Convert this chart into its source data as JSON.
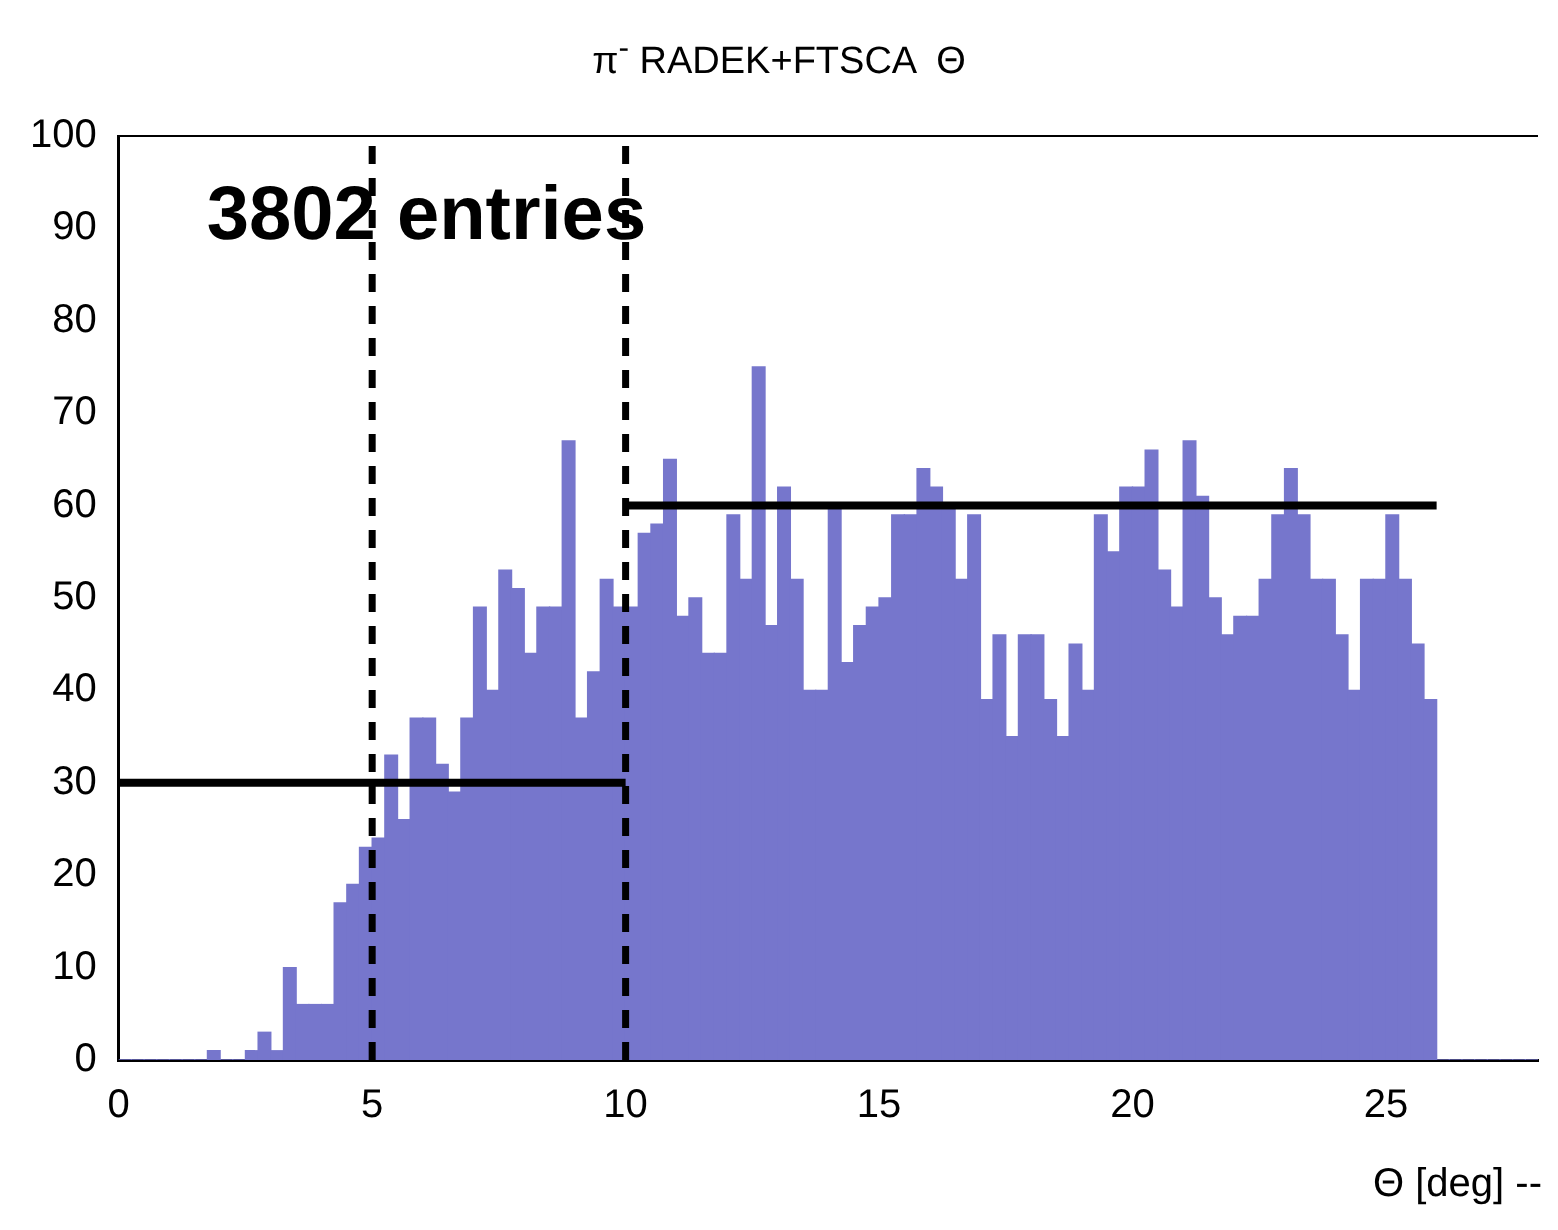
{
  "chart_data": {
    "type": "histogram",
    "title": "π$^{-}$ RADEK+FTSCA  Θ",
    "xlabel": "Θ [deg] --",
    "annotations": [
      "3802 entries"
    ],
    "bins": [
      0,
      0.25,
      0.5,
      0.75,
      1,
      1.25,
      1.5,
      1.75,
      2,
      2.25,
      2.5,
      2.75,
      3,
      3.25,
      3.5,
      3.75,
      4,
      4.25,
      4.5,
      4.75,
      5,
      5.25,
      5.5,
      5.75,
      6,
      6.25,
      6.5,
      6.75,
      7,
      7.25,
      7.5,
      7.75,
      8,
      8.25,
      8.5,
      8.75,
      9,
      9.25,
      9.5,
      9.75,
      10,
      10.25,
      10.5,
      10.75,
      11,
      11.25,
      11.5,
      11.75,
      12,
      12.25,
      12.5,
      12.75,
      13,
      13.25,
      13.5,
      13.75,
      14,
      14.25,
      14.5,
      14.75,
      15,
      15.25,
      15.5,
      15.75,
      16,
      16.25,
      16.5,
      16.75,
      17,
      17.25,
      17.5,
      17.75,
      18,
      18.25,
      18.5,
      18.75,
      19,
      19.25,
      19.5,
      19.75,
      20,
      20.25,
      20.5,
      20.75,
      21,
      21.25,
      21.5,
      21.75,
      22,
      22.25,
      22.5,
      22.75,
      23,
      23.25,
      23.5,
      23.75,
      24,
      24.25,
      24.5,
      24.75,
      25,
      25.25,
      25.5,
      25.75,
      26,
      26.25,
      26.5,
      26.75,
      27,
      27.25,
      27.5,
      27.75,
      28
    ],
    "values": [
      0,
      0,
      0,
      0,
      0,
      0,
      0,
      1,
      0,
      0,
      1,
      3,
      1,
      10,
      6,
      6,
      6,
      17,
      19,
      23,
      24,
      33,
      26,
      37,
      37,
      32,
      29,
      37,
      49,
      40,
      53,
      51,
      44,
      49,
      49,
      67,
      37,
      42,
      52,
      49,
      49,
      57,
      58,
      65,
      48,
      50,
      44,
      44,
      59,
      52,
      75,
      47,
      62,
      52,
      40,
      40,
      60,
      43,
      47,
      49,
      50,
      59,
      59,
      64,
      62,
      60,
      52,
      59,
      39,
      46,
      35,
      46,
      46,
      39,
      35,
      45,
      40,
      59,
      55,
      62,
      62,
      66,
      53,
      49,
      67,
      61,
      50,
      46,
      48,
      48,
      52,
      59,
      64,
      59,
      52,
      52,
      46,
      40,
      52,
      52,
      59,
      52,
      45,
      39,
      0,
      0,
      0,
      0,
      0,
      0,
      0,
      0
    ],
    "color": "#7676cc",
    "series": [
      {
        "type": "line",
        "x": [
          0,
          10
        ],
        "values": [
          30,
          30
        ],
        "color": "#000000"
      },
      {
        "type": "line",
        "x": [
          10,
          26
        ],
        "values": [
          60,
          60
        ],
        "color": "#000000"
      }
    ],
    "ref_lines": [
      {
        "axis": "x",
        "value": 5,
        "color": "#000000",
        "line_style": "dashed"
      },
      {
        "axis": "x",
        "value": 10,
        "color": "#000000",
        "line_style": "dashed"
      }
    ],
    "xlim": [
      0,
      28
    ],
    "xticks": [
      0,
      5,
      10,
      15,
      20,
      25
    ],
    "ylim": [
      0,
      100
    ],
    "yticks": [
      0,
      10,
      20,
      30,
      40,
      50,
      60,
      70,
      80,
      90,
      100
    ]
  }
}
